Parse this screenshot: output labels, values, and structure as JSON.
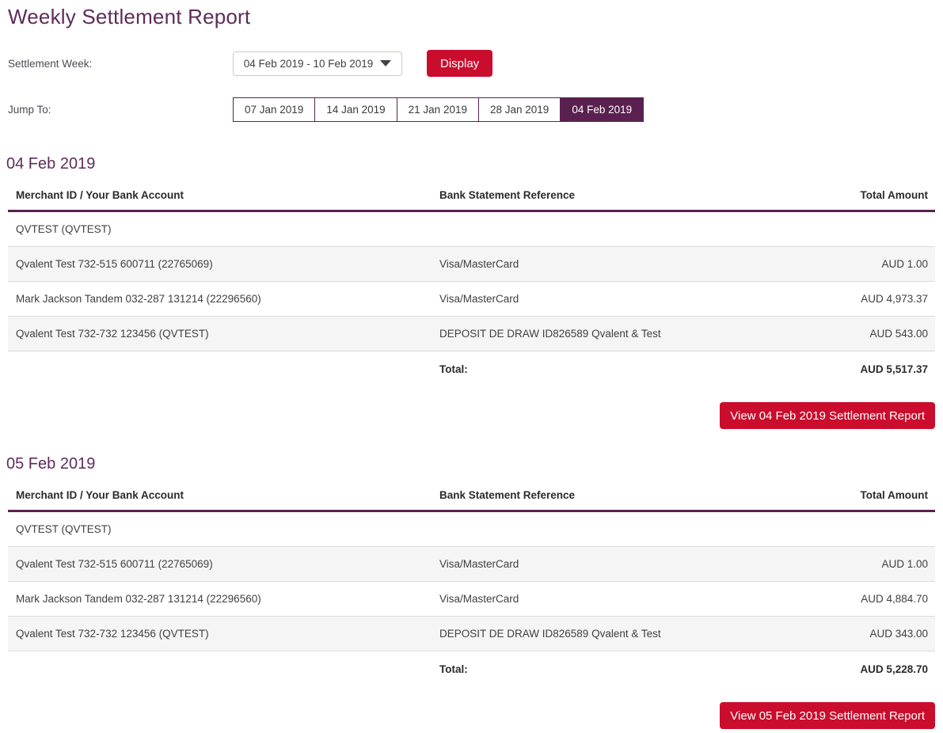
{
  "page": {
    "title": "Weekly Settlement Report"
  },
  "filters": {
    "settlement_week_label": "Settlement Week:",
    "settlement_week_value": "04 Feb 2019 - 10 Feb 2019",
    "display_button_label": "Display",
    "jump_to_label": "Jump To:",
    "jump_tabs": [
      {
        "label": "07 Jan 2019",
        "selected": false
      },
      {
        "label": "14 Jan 2019",
        "selected": false
      },
      {
        "label": "21 Jan 2019",
        "selected": false
      },
      {
        "label": "28 Jan 2019",
        "selected": false
      },
      {
        "label": "04 Feb 2019",
        "selected": true
      }
    ]
  },
  "columns": {
    "merchant": "Merchant ID / Your Bank Account",
    "reference": "Bank Statement Reference",
    "amount": "Total Amount"
  },
  "sections": [
    {
      "heading": "04 Feb 2019",
      "rows": [
        {
          "merchant": "QVTEST (QVTEST)",
          "reference": "",
          "amount": ""
        },
        {
          "merchant": "Qvalent Test 732-515 600711 (22765069)",
          "reference": "Visa/MasterCard",
          "amount": "AUD 1.00"
        },
        {
          "merchant": "Mark Jackson Tandem 032-287 131214 (22296560)",
          "reference": "Visa/MasterCard",
          "amount": "AUD 4,973.37"
        },
        {
          "merchant": "Qvalent Test 732-732 123456 (QVTEST)",
          "reference": "DEPOSIT DE DRAW ID826589 Qvalent & Test",
          "amount": "AUD 543.00"
        }
      ],
      "total_label": "Total:",
      "total_amount": "AUD 5,517.37",
      "view_button_label": "View 04 Feb 2019 Settlement Report"
    },
    {
      "heading": "05 Feb 2019",
      "rows": [
        {
          "merchant": "QVTEST (QVTEST)",
          "reference": "",
          "amount": ""
        },
        {
          "merchant": "Qvalent Test 732-515 600711 (22765069)",
          "reference": "Visa/MasterCard",
          "amount": "AUD 1.00"
        },
        {
          "merchant": "Mark Jackson Tandem 032-287 131214 (22296560)",
          "reference": "Visa/MasterCard",
          "amount": "AUD 4,884.70"
        },
        {
          "merchant": "Qvalent Test 732-732 123456 (QVTEST)",
          "reference": "DEPOSIT DE DRAW ID826589 Qvalent & Test",
          "amount": "AUD 343.00"
        }
      ],
      "total_label": "Total:",
      "total_amount": "AUD 5,228.70",
      "view_button_label": "View 05 Feb 2019 Settlement Report"
    }
  ],
  "colors": {
    "plum": "#5A2150",
    "heading_plum": "#5E2C5A",
    "action_red": "#CA0D2D",
    "row_stripe": "#F5F5F5",
    "row_divider": "#DDDDDD"
  }
}
